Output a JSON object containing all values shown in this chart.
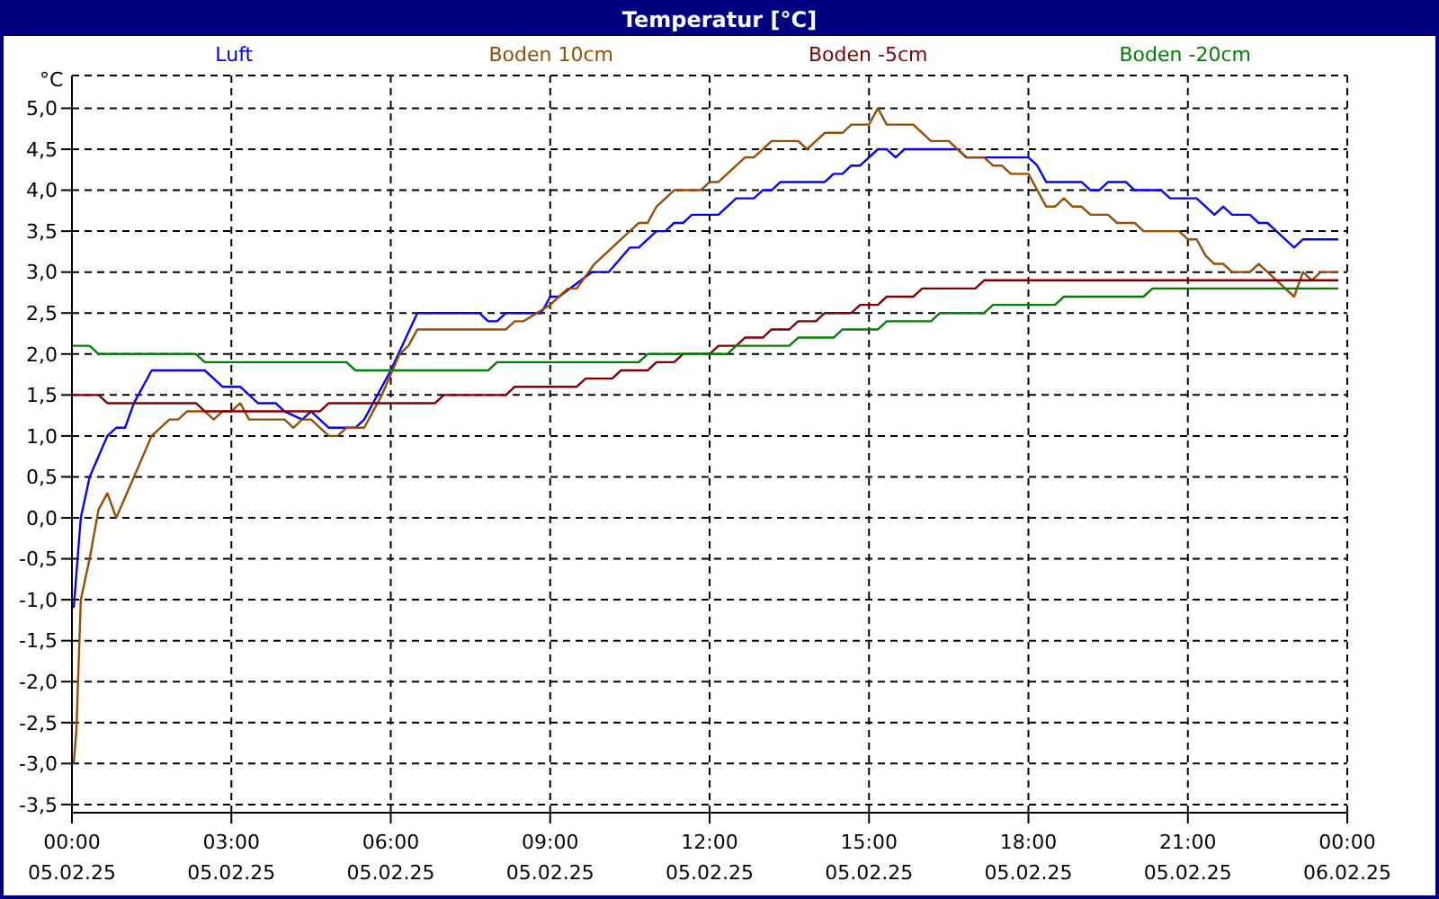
{
  "chart_data": {
    "type": "line",
    "title": "Temperatur [°C]",
    "ylabel": "°C",
    "legend": "top",
    "grid": true,
    "marker": "none",
    "line_style": "solid",
    "xlim": [
      "--02-05T00:00",
      "--02-06T00:00"
    ],
    "ylim": [
      -3.6,
      5.4
    ],
    "xticks": [
      {
        "value": "--02-05T00:00",
        "label": "00:00\n05.02.25"
      },
      {
        "value": "--02-05T03:00",
        "label": "03:00\n05.02.25"
      },
      {
        "value": "--02-05T06:00",
        "label": "06:00\n05.02.25"
      },
      {
        "value": "--02-05T09:00",
        "label": "09:00\n05.02.25"
      },
      {
        "value": "--02-05T12:00",
        "label": "12:00\n05.02.25"
      },
      {
        "value": "--02-05T15:00",
        "label": "15:00\n05.02.25"
      },
      {
        "value": "--02-05T18:00",
        "label": "18:00\n05.02.25"
      },
      {
        "value": "--02-05T21:00",
        "label": "21:00\n05.02.25"
      },
      {
        "value": "--02-06T00:00",
        "label": "00:00\n06.02.25"
      }
    ],
    "yticks": [
      {
        "value": -3.5,
        "label": "-3,5"
      },
      {
        "value": -3,
        "label": "-3,0"
      },
      {
        "value": -2.5,
        "label": "-2,5"
      },
      {
        "value": -2,
        "label": "-2,0"
      },
      {
        "value": -1.5,
        "label": "-1,5"
      },
      {
        "value": -1,
        "label": "-1,0"
      },
      {
        "value": -0.5,
        "label": "-0,5"
      },
      {
        "value": 0,
        "label": "0,0"
      },
      {
        "value": 0.5,
        "label": "0,5"
      },
      {
        "value": 1,
        "label": "1,0"
      },
      {
        "value": 1.5,
        "label": "1,5"
      },
      {
        "value": 2,
        "label": "2,0"
      },
      {
        "value": 2.5,
        "label": "2,5"
      },
      {
        "value": 3,
        "label": "3,0"
      },
      {
        "value": 3.5,
        "label": "3,5"
      },
      {
        "value": 4,
        "label": "4,0"
      },
      {
        "value": 4.5,
        "label": "4,5"
      },
      {
        "value": 5,
        "label": "5,0"
      }
    ],
    "series": [
      {
        "name": "Luft",
        "color": "#0000ff",
        "x": [
          "--02-05T00:02",
          "--02-05T00:10",
          "--02-05T00:20",
          "--02-05T00:40",
          "--02-05T00:50",
          "--02-05T01:00",
          "--02-05T01:10",
          "--02-05T01:30",
          "--02-05T02:30",
          "--02-05T02:50",
          "--02-05T03:10",
          "--02-05T03:30",
          "--02-05T03:50",
          "--02-05T04:00",
          "--02-05T04:20",
          "--02-05T04:30",
          "--02-05T04:50",
          "--02-05T05:20",
          "--02-05T05:30",
          "--02-05T06:00",
          "--02-05T06:30",
          "--02-05T07:40",
          "--02-05T07:50",
          "--02-05T08:00",
          "--02-05T08:10",
          "--02-05T08:50",
          "--02-05T09:00",
          "--02-05T09:10",
          "--02-05T09:47",
          "--02-05T10:06",
          "--02-05T10:30",
          "--02-05T10:40",
          "--02-05T11:00",
          "--02-05T11:10",
          "--02-05T11:20",
          "--02-05T11:30",
          "--02-05T11:40",
          "--02-05T12:00",
          "--02-05T12:10",
          "--02-05T12:30",
          "--02-05T12:50",
          "--02-05T13:00",
          "--02-05T13:10",
          "--02-05T13:20",
          "--02-05T14:10",
          "--02-05T14:20",
          "--02-05T14:30",
          "--02-05T14:40",
          "--02-05T14:50",
          "--02-05T15:10",
          "--02-05T15:20",
          "--02-05T15:30",
          "--02-05T15:40",
          "--02-05T16:40",
          "--02-05T16:50",
          "--02-05T18:00",
          "--02-05T18:10",
          "--02-05T18:20",
          "--02-05T19:00",
          "--02-05T19:10",
          "--02-05T19:20",
          "--02-05T19:30",
          "--02-05T19:50",
          "--02-05T20:00",
          "--02-05T20:30",
          "--02-05T20:40",
          "--02-05T21:10",
          "--02-05T21:30",
          "--02-05T21:40",
          "--02-05T21:50",
          "--02-05T22:10",
          "--02-05T22:20",
          "--02-05T22:30",
          "--02-05T22:40",
          "--02-05T23:00",
          "--02-05T23:10",
          "--02-05T23:50"
        ],
        "values": [
          -1.1,
          0.0,
          0.5,
          1.0,
          1.1,
          1.1,
          1.4,
          1.8,
          1.8,
          1.6,
          1.6,
          1.4,
          1.4,
          1.3,
          1.2,
          1.3,
          1.1,
          1.1,
          1.2,
          1.8,
          2.5,
          2.5,
          2.4,
          2.4,
          2.5,
          2.5,
          2.7,
          2.7,
          3.0,
          3.0,
          3.3,
          3.3,
          3.5,
          3.5,
          3.6,
          3.6,
          3.7,
          3.7,
          3.7,
          3.9,
          3.9,
          4.0,
          4.0,
          4.1,
          4.1,
          4.2,
          4.2,
          4.3,
          4.3,
          4.5,
          4.5,
          4.4,
          4.5,
          4.5,
          4.4,
          4.4,
          4.3,
          4.1,
          4.1,
          4.0,
          4.0,
          4.1,
          4.1,
          4.0,
          4.0,
          3.9,
          3.9,
          3.7,
          3.8,
          3.7,
          3.7,
          3.6,
          3.6,
          3.5,
          3.3,
          3.4,
          3.4
        ]
      },
      {
        "name": "Boden 10cm",
        "color": "#994c00",
        "x": [
          "--02-05T00:02",
          "--02-05T00:05",
          "--02-05T00:10",
          "--02-05T00:20",
          "--02-05T00:30",
          "--02-05T00:40",
          "--02-05T00:50",
          "--02-05T01:10",
          "--02-05T01:30",
          "--02-05T01:50",
          "--02-05T02:00",
          "--02-05T02:10",
          "--02-05T02:30",
          "--02-05T02:40",
          "--02-05T02:50",
          "--02-05T03:00",
          "--02-05T03:10",
          "--02-05T03:20",
          "--02-05T04:00",
          "--02-05T04:10",
          "--02-05T04:20",
          "--02-05T04:30",
          "--02-05T04:50",
          "--02-05T05:00",
          "--02-05T05:10",
          "--02-05T05:30",
          "--02-05T05:50",
          "--02-05T06:10",
          "--02-05T06:20",
          "--02-05T06:30",
          "--02-05T08:10",
          "--02-05T08:20",
          "--02-05T08:30",
          "--02-05T09:00",
          "--02-05T09:10",
          "--02-05T09:20",
          "--02-05T09:30",
          "--02-05T09:50",
          "--02-05T10:10",
          "--02-05T10:20",
          "--02-05T10:40",
          "--02-05T10:50",
          "--02-05T11:00",
          "--02-05T11:20",
          "--02-05T11:50",
          "--02-05T12:00",
          "--02-05T12:10",
          "--02-05T12:30",
          "--02-05T12:40",
          "--02-05T12:50",
          "--02-05T13:10",
          "--02-05T13:40",
          "--02-05T13:50",
          "--02-05T14:10",
          "--02-05T14:30",
          "--02-05T14:40",
          "--02-05T15:00",
          "--02-05T15:10",
          "--02-05T15:20",
          "--02-05T15:50",
          "--02-05T16:10",
          "--02-05T16:30",
          "--02-05T16:50",
          "--02-05T17:10",
          "--02-05T17:20",
          "--02-05T17:30",
          "--02-05T17:40",
          "--02-05T18:00",
          "--02-05T18:20",
          "--02-05T18:30",
          "--02-05T18:40",
          "--02-05T18:50",
          "--02-05T19:00",
          "--02-05T19:10",
          "--02-05T19:30",
          "--02-05T19:40",
          "--02-05T20:00",
          "--02-05T20:10",
          "--02-05T20:50",
          "--02-05T21:00",
          "--02-05T21:10",
          "--02-05T21:20",
          "--02-05T21:30",
          "--02-05T21:40",
          "--02-05T21:50",
          "--02-05T22:10",
          "--02-05T22:20",
          "--02-05T22:30",
          "--02-05T23:00",
          "--02-05T23:10",
          "--02-05T23:20",
          "--02-05T23:30",
          "--02-05T23:50"
        ],
        "values": [
          -3.0,
          -2.6,
          -1.0,
          -0.5,
          0.1,
          0.3,
          0.0,
          0.5,
          1.0,
          1.2,
          1.2,
          1.3,
          1.3,
          1.2,
          1.3,
          1.3,
          1.4,
          1.2,
          1.2,
          1.1,
          1.2,
          1.2,
          1.0,
          1.0,
          1.1,
          1.1,
          1.5,
          2.0,
          2.1,
          2.3,
          2.3,
          2.4,
          2.4,
          2.6,
          2.7,
          2.8,
          2.8,
          3.1,
          3.3,
          3.4,
          3.6,
          3.6,
          3.8,
          4.0,
          4.0,
          4.1,
          4.1,
          4.3,
          4.4,
          4.4,
          4.6,
          4.6,
          4.5,
          4.7,
          4.7,
          4.8,
          4.8,
          5.0,
          4.8,
          4.8,
          4.6,
          4.6,
          4.4,
          4.4,
          4.3,
          4.3,
          4.2,
          4.2,
          3.8,
          3.8,
          3.9,
          3.8,
          3.8,
          3.7,
          3.7,
          3.6,
          3.6,
          3.5,
          3.5,
          3.4,
          3.4,
          3.2,
          3.1,
          3.1,
          3.0,
          3.0,
          3.1,
          3.0,
          2.7,
          3.0,
          2.9,
          3.0,
          3.0
        ]
      },
      {
        "name": "Boden -5cm",
        "color": "#800000",
        "x": [
          "--02-05T00:00",
          "--02-05T00:30",
          "--02-05T00:40",
          "--02-05T02:20",
          "--02-05T02:30",
          "--02-05T04:40",
          "--02-05T04:50",
          "--02-05T06:50",
          "--02-05T07:00",
          "--02-05T08:10",
          "--02-05T08:20",
          "--02-05T09:30",
          "--02-05T09:40",
          "--02-05T10:10",
          "--02-05T10:20",
          "--02-05T10:50",
          "--02-05T11:00",
          "--02-05T11:20",
          "--02-05T11:30",
          "--02-05T12:00",
          "--02-05T12:10",
          "--02-05T12:30",
          "--02-05T12:40",
          "--02-05T13:00",
          "--02-05T13:10",
          "--02-05T13:30",
          "--02-05T13:40",
          "--02-05T14:00",
          "--02-05T14:10",
          "--02-05T14:40",
          "--02-05T14:50",
          "--02-05T15:10",
          "--02-05T15:20",
          "--02-05T15:50",
          "--02-05T16:00",
          "--02-05T17:00",
          "--02-05T17:10",
          "--02-05T23:50"
        ],
        "values": [
          1.5,
          1.5,
          1.4,
          1.4,
          1.3,
          1.3,
          1.4,
          1.4,
          1.5,
          1.5,
          1.6,
          1.6,
          1.7,
          1.7,
          1.8,
          1.8,
          1.9,
          1.9,
          2.0,
          2.0,
          2.1,
          2.1,
          2.2,
          2.2,
          2.3,
          2.3,
          2.4,
          2.4,
          2.5,
          2.5,
          2.6,
          2.6,
          2.7,
          2.7,
          2.8,
          2.8,
          2.9,
          2.9
        ]
      },
      {
        "name": "Boden -20cm",
        "color": "#008000",
        "x": [
          "--02-05T00:00",
          "--02-05T00:20",
          "--02-05T00:30",
          "--02-05T02:20",
          "--02-05T02:30",
          "--02-05T05:10",
          "--02-05T05:20",
          "--02-05T07:50",
          "--02-05T08:00",
          "--02-05T10:40",
          "--02-05T10:50",
          "--02-05T12:20",
          "--02-05T12:30",
          "--02-05T13:30",
          "--02-05T13:40",
          "--02-05T14:20",
          "--02-05T14:30",
          "--02-05T15:10",
          "--02-05T15:20",
          "--02-05T16:10",
          "--02-05T16:20",
          "--02-05T17:10",
          "--02-05T17:20",
          "--02-05T18:30",
          "--02-05T18:40",
          "--02-05T20:10",
          "--02-05T20:20",
          "--02-05T23:50"
        ],
        "values": [
          2.1,
          2.1,
          2.0,
          2.0,
          1.9,
          1.9,
          1.8,
          1.8,
          1.9,
          1.9,
          2.0,
          2.0,
          2.1,
          2.1,
          2.2,
          2.2,
          2.3,
          2.3,
          2.4,
          2.4,
          2.5,
          2.5,
          2.6,
          2.6,
          2.7,
          2.7,
          2.8,
          2.8
        ]
      }
    ]
  }
}
